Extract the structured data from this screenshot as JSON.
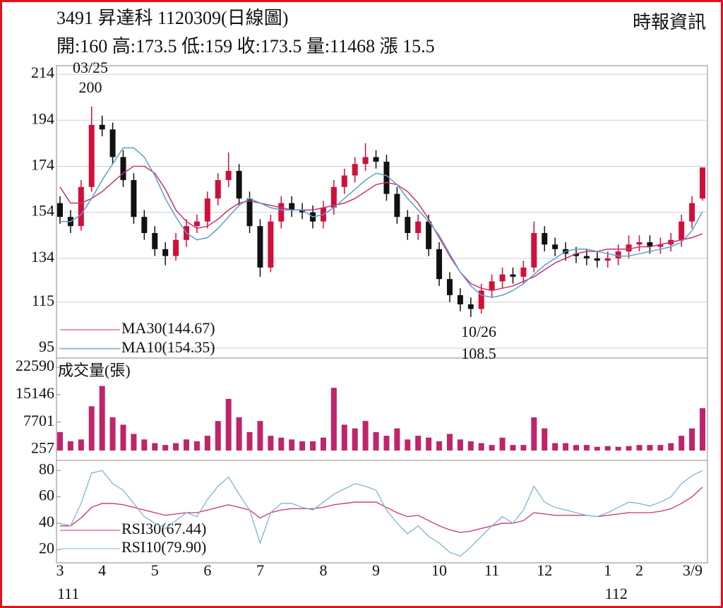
{
  "header": {
    "title": "3491  昇達科 1120309(日線圖)",
    "source": "時報資訊",
    "stats": "開:160 高:173.5 低:159 收:173.5 量:11468 漲 15.5"
  },
  "annotations": [
    {
      "date": "03/25",
      "value": "200"
    },
    {
      "date": "10/26",
      "value": "108.5"
    }
  ],
  "chart_data": [
    {
      "type": "candlestick",
      "open": [
        158,
        152,
        148,
        165,
        192,
        190,
        178,
        168,
        152,
        145,
        138,
        135,
        142,
        148,
        150,
        160,
        168,
        172,
        160,
        148,
        130,
        150,
        158,
        155,
        154,
        150,
        156,
        165,
        170,
        175,
        178,
        176,
        162,
        152,
        145,
        150,
        138,
        125,
        118,
        114,
        112,
        120,
        124,
        127,
        126,
        130,
        145,
        140,
        138,
        136,
        135,
        134,
        133,
        134,
        137,
        140,
        141,
        139,
        140,
        142,
        150,
        160
      ],
      "high": [
        161,
        155,
        168,
        200,
        196,
        193,
        181,
        171,
        155,
        148,
        141,
        145,
        151,
        153,
        163,
        171,
        180,
        175,
        163,
        151,
        153,
        161,
        161,
        158,
        157,
        159,
        168,
        173,
        178,
        184,
        181,
        179,
        165,
        155,
        153,
        153,
        141,
        128,
        121,
        117,
        123,
        127,
        130,
        130,
        133,
        150,
        148,
        143,
        141,
        139,
        138,
        137,
        137,
        140,
        144,
        144,
        144,
        143,
        145,
        153,
        161,
        173.5
      ],
      "low": [
        149,
        145,
        146,
        163,
        187,
        175,
        165,
        149,
        142,
        135,
        131,
        133,
        139,
        145,
        147,
        157,
        165,
        157,
        145,
        126,
        128,
        147,
        152,
        151,
        147,
        147,
        153,
        162,
        167,
        172,
        173,
        159,
        149,
        142,
        142,
        135,
        122,
        115,
        111,
        108.5,
        110,
        117,
        121,
        123,
        123,
        128,
        137,
        135,
        133,
        132,
        131,
        130,
        130,
        131,
        134,
        137,
        136,
        136,
        137,
        139,
        147,
        159
      ],
      "close": [
        152,
        148,
        165,
        192,
        190,
        178,
        168,
        152,
        145,
        138,
        135,
        142,
        148,
        150,
        160,
        168,
        172,
        160,
        148,
        130,
        150,
        158,
        155,
        154,
        150,
        156,
        165,
        170,
        175,
        178,
        176,
        162,
        152,
        145,
        150,
        138,
        125,
        118,
        114,
        112,
        120,
        124,
        127,
        126,
        130,
        145,
        140,
        138,
        136,
        135,
        134,
        133,
        134,
        137,
        140,
        141,
        139,
        140,
        142,
        150,
        158,
        173.5
      ],
      "up_color": "#d0103a",
      "down_color": "#111111",
      "lines": [
        {
          "name": "MA30(144.67)",
          "color": "#c8336f",
          "values": [
            165,
            158,
            158,
            160,
            163,
            167,
            171,
            174,
            174,
            171,
            164,
            155,
            150,
            147,
            148,
            151,
            155,
            158,
            159,
            158,
            157,
            156,
            155,
            155,
            155,
            156,
            157,
            158,
            160,
            163,
            166,
            167,
            166,
            163,
            158,
            151,
            143,
            135,
            128,
            123,
            121,
            120,
            121,
            122,
            124,
            126,
            129,
            132,
            134,
            136,
            137,
            137,
            138,
            138,
            138,
            139,
            139,
            140,
            141,
            142,
            143,
            144.67
          ]
        },
        {
          "name": "MA10(154.35)",
          "color": "#5a9fd0",
          "values": [
            150,
            150,
            153,
            160,
            168,
            175,
            182,
            182,
            178,
            170,
            160,
            152,
            145,
            142,
            143,
            147,
            152,
            157,
            160,
            158,
            156,
            155,
            155,
            155,
            152,
            153,
            156,
            160,
            164,
            168,
            171,
            170,
            166,
            160,
            155,
            150,
            144,
            136,
            128,
            122,
            118,
            117,
            118,
            120,
            123,
            127,
            131,
            134,
            137,
            138,
            138,
            137,
            136,
            135,
            135,
            136,
            137,
            138,
            139,
            141,
            146,
            154.35
          ]
        }
      ],
      "ylim": [
        91.3,
        217.1
      ],
      "yticks": [
        214,
        194,
        174,
        154,
        134,
        115,
        95
      ],
      "grid": true
    },
    {
      "type": "bar",
      "title": "成交量(張)",
      "color": "#c0246a",
      "values": [
        5000,
        2500,
        3000,
        12000,
        17500,
        9000,
        7000,
        4500,
        3000,
        2000,
        1500,
        2000,
        3000,
        2500,
        4000,
        8000,
        14000,
        9000,
        5000,
        8000,
        4000,
        3500,
        3000,
        2500,
        2500,
        3500,
        17000,
        7000,
        6000,
        8000,
        5000,
        4000,
        6000,
        3000,
        4000,
        3500,
        2500,
        4500,
        3000,
        2500,
        2000,
        1500,
        3500,
        1500,
        1500,
        9000,
        6000,
        2000,
        2000,
        1500,
        1500,
        1000,
        1200,
        1000,
        1200,
        1500,
        1500,
        1500,
        2000,
        4000,
        6000,
        11468
      ],
      "ylim": [
        -2300,
        24500
      ],
      "yticks": [
        22590,
        15146,
        7701,
        257
      ],
      "grid": false
    },
    {
      "type": "line",
      "categories": [
        "3",
        null,
        null,
        null,
        "4",
        null,
        null,
        null,
        null,
        "5",
        null,
        null,
        null,
        null,
        "6",
        null,
        null,
        null,
        null,
        "7",
        null,
        null,
        null,
        null,
        null,
        "8",
        null,
        null,
        null,
        null,
        "9",
        null,
        null,
        null,
        null,
        null,
        "10",
        null,
        null,
        null,
        null,
        "11",
        null,
        null,
        null,
        null,
        "12",
        null,
        null,
        null,
        null,
        null,
        "1",
        null,
        null,
        "2",
        null,
        null,
        null,
        null,
        null,
        "3/9"
      ],
      "sublabels": [
        "111",
        null,
        null,
        null,
        null,
        null,
        null,
        null,
        null,
        null,
        null,
        null,
        null,
        null,
        null,
        null,
        null,
        null,
        null,
        null,
        null,
        null,
        null,
        null,
        null,
        null,
        null,
        null,
        null,
        null,
        null,
        null,
        null,
        null,
        null,
        null,
        null,
        null,
        null,
        null,
        null,
        null,
        null,
        null,
        null,
        null,
        null,
        null,
        null,
        null,
        null,
        null,
        "112",
        null,
        null,
        null,
        null,
        null,
        null,
        null,
        null,
        null
      ],
      "series": [
        {
          "name": "RSI30(67.44)",
          "color": "#c8336f",
          "values": [
            38,
            38,
            44,
            52,
            55,
            55,
            54,
            52,
            50,
            48,
            46,
            47,
            48,
            48,
            50,
            52,
            54,
            52,
            50,
            44,
            48,
            50,
            51,
            51,
            51,
            52,
            54,
            55,
            56,
            56,
            56,
            52,
            48,
            45,
            46,
            42,
            38,
            35,
            33,
            34,
            36,
            38,
            40,
            40,
            42,
            48,
            47,
            46,
            46,
            46,
            46,
            45,
            46,
            47,
            48,
            48,
            48,
            49,
            51,
            55,
            60,
            67.44
          ]
        },
        {
          "name": "RSI10(79.90)",
          "color": "#7fb3d8",
          "values": [
            40,
            38,
            55,
            78,
            80,
            70,
            65,
            55,
            45,
            40,
            36,
            42,
            48,
            45,
            58,
            68,
            75,
            62,
            50,
            25,
            48,
            55,
            55,
            52,
            50,
            56,
            62,
            66,
            70,
            68,
            65,
            50,
            40,
            32,
            38,
            30,
            25,
            18,
            15,
            22,
            30,
            38,
            45,
            40,
            50,
            68,
            56,
            52,
            50,
            48,
            46,
            45,
            48,
            52,
            56,
            55,
            53,
            56,
            60,
            70,
            76,
            79.9
          ]
        }
      ],
      "ylim": [
        10,
        86
      ],
      "yticks": [
        80,
        60,
        40,
        20
      ],
      "grid": false
    }
  ]
}
